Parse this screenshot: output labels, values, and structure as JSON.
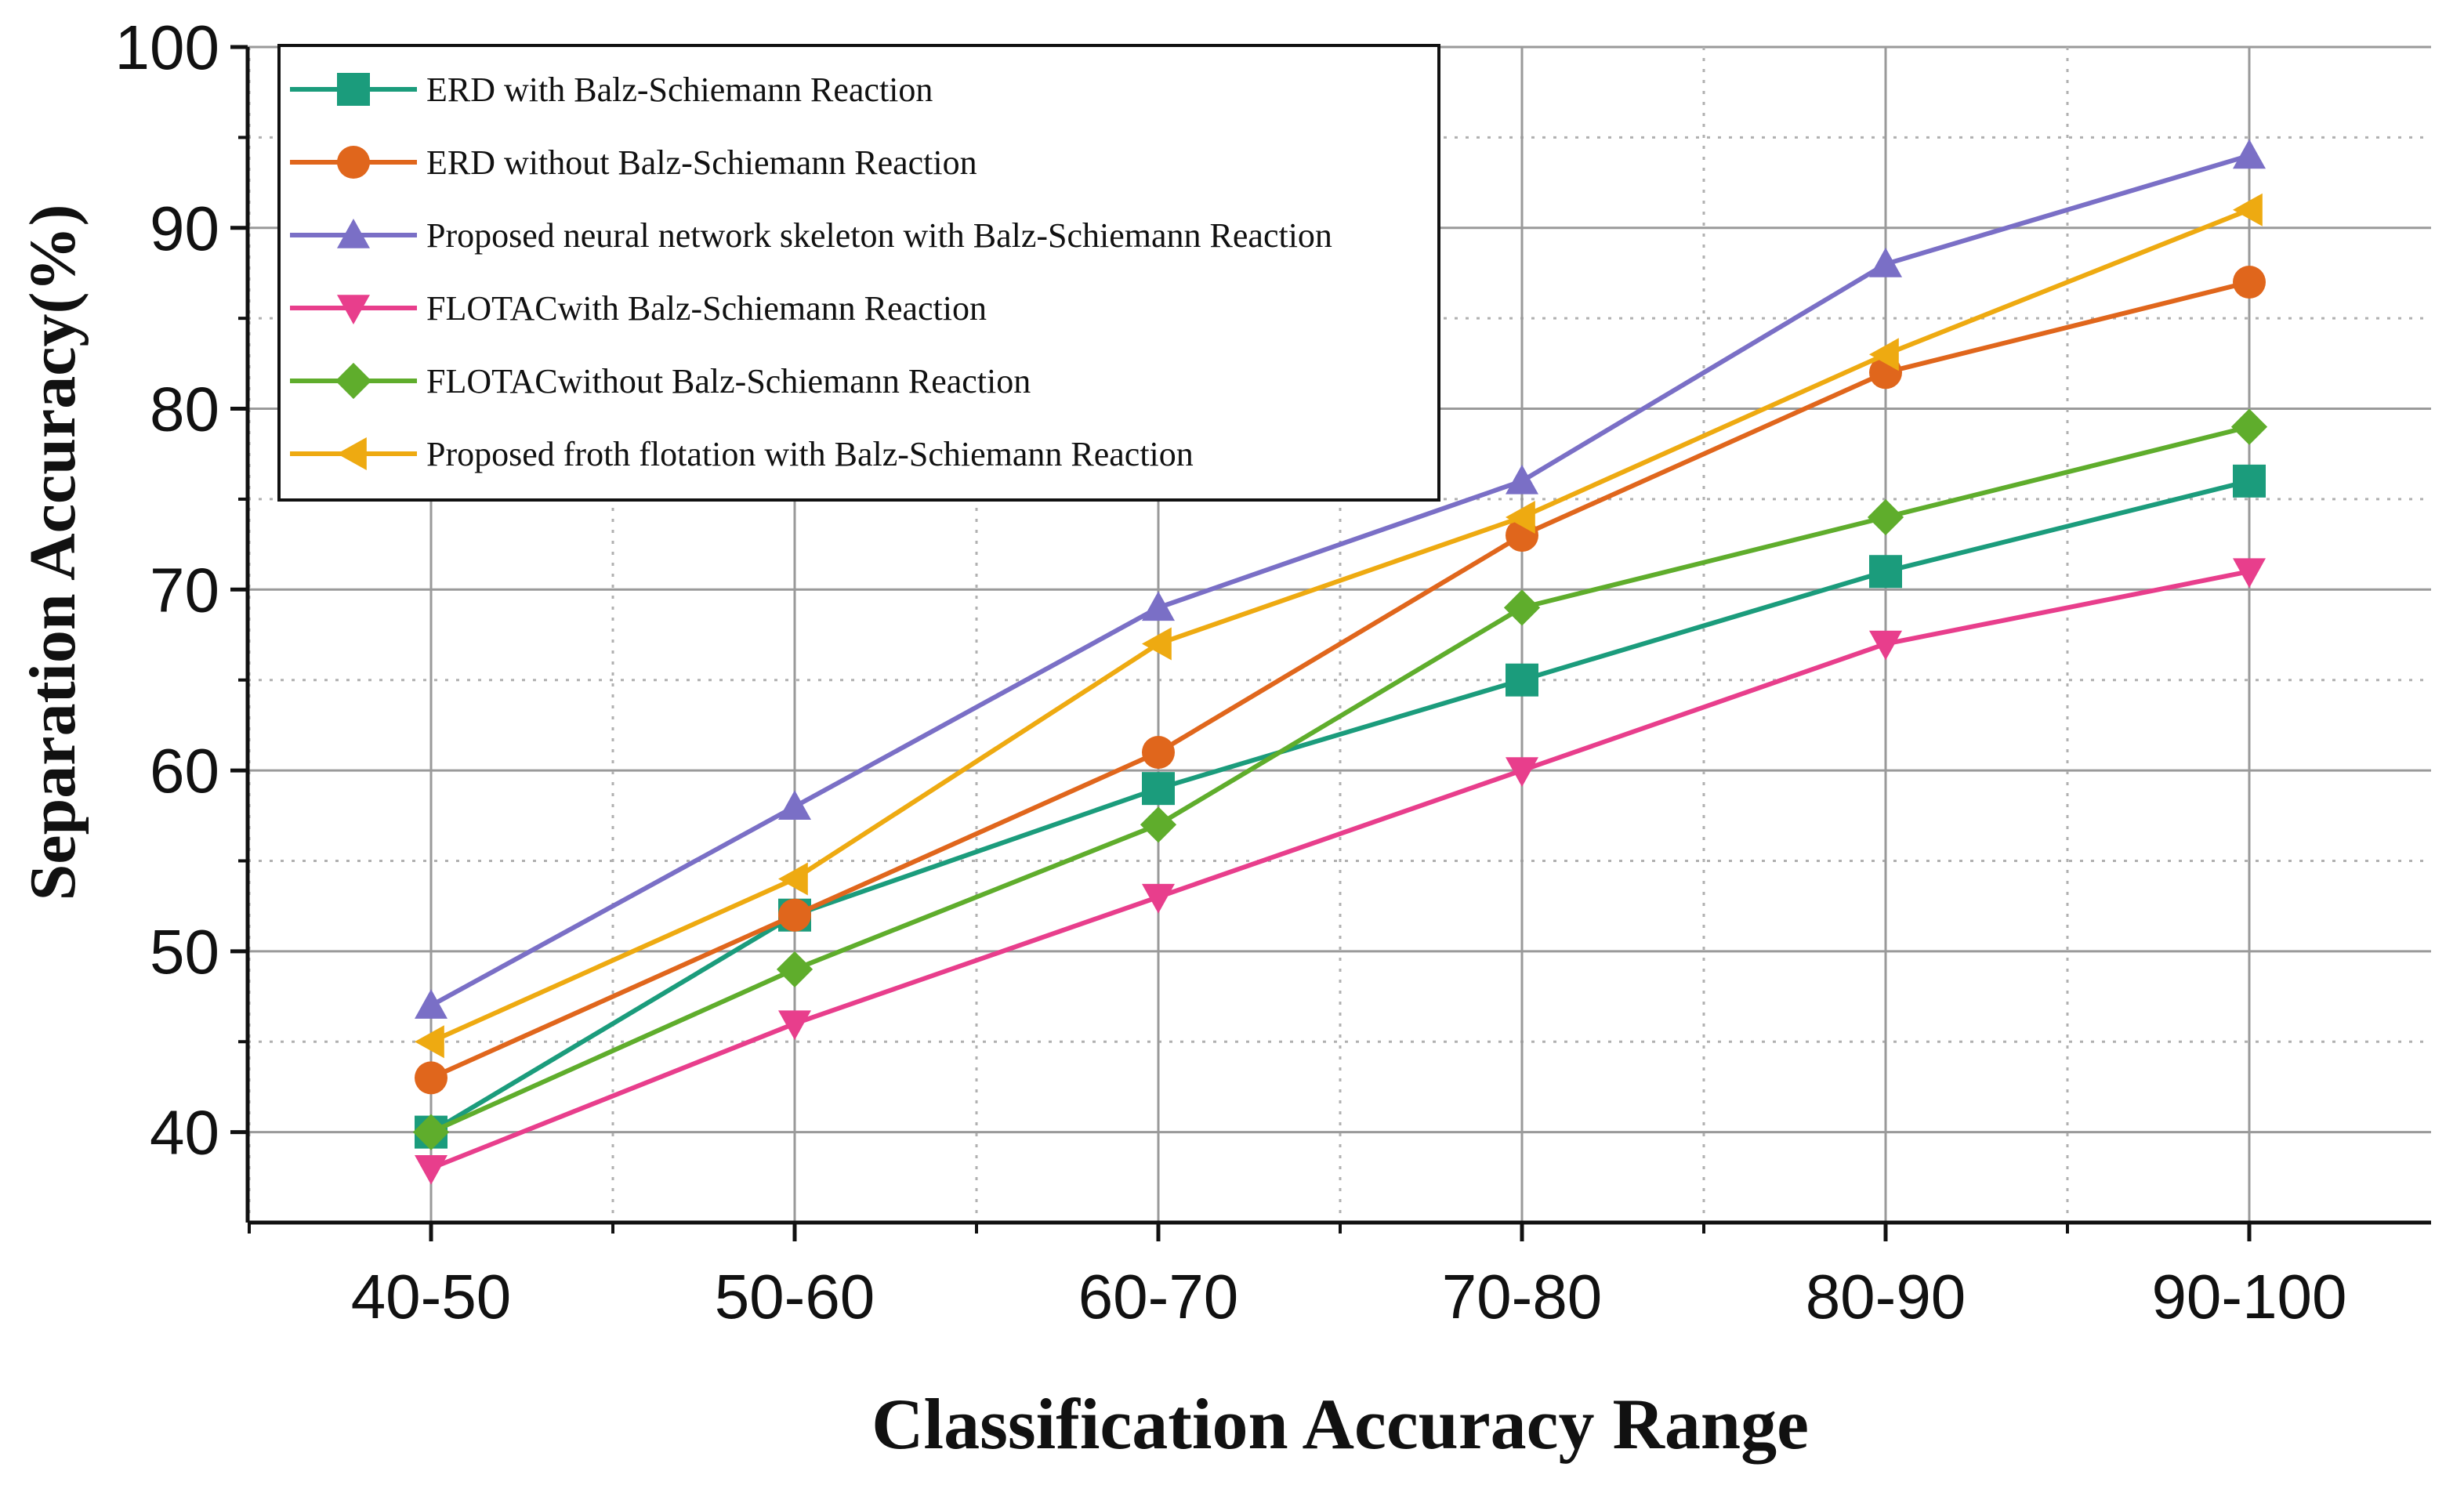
{
  "chart_data": {
    "type": "line",
    "title": "",
    "xlabel": "Classification Accuracy Range",
    "ylabel": "Separation Accuracy(%)",
    "categories": [
      "40-50",
      "50-60",
      "60-70",
      "70-80",
      "80-90",
      "90-100"
    ],
    "ylim": [
      35,
      100
    ],
    "yticks": [
      40,
      50,
      60,
      70,
      80,
      90,
      100
    ],
    "grid": true,
    "legend_position": "top-left",
    "series": [
      {
        "name": "ERD with Balz-Schiemann Reaction",
        "marker": "square",
        "color": "#1b9c7c",
        "values": [
          40,
          52,
          59,
          65,
          71,
          76
        ]
      },
      {
        "name": "ERD without Balz-Schiemann Reaction",
        "marker": "circle",
        "color": "#e0661c",
        "values": [
          43,
          52,
          61,
          73,
          82,
          87
        ]
      },
      {
        "name": "Proposed neural network skeleton with Balz-Schiemann Reaction",
        "marker": "triangle-up",
        "color": "#7a6fc6",
        "values": [
          47,
          58,
          69,
          76,
          88,
          94
        ]
      },
      {
        "name": "FLOTACwith Balz-Schiemann Reaction",
        "marker": "triangle-down",
        "color": "#e83e8c",
        "values": [
          38,
          46,
          53,
          60,
          67,
          71
        ]
      },
      {
        "name": "FLOTACwithout Balz-Schiemann Reaction",
        "marker": "diamond",
        "color": "#5fad2c",
        "values": [
          40,
          49,
          57,
          69,
          74,
          79
        ]
      },
      {
        "name": "Proposed froth flotation  with Balz-Schiemann Reaction",
        "marker": "triangle-left",
        "color": "#eeaa11",
        "values": [
          45,
          54,
          67,
          74,
          83,
          91
        ]
      }
    ]
  }
}
